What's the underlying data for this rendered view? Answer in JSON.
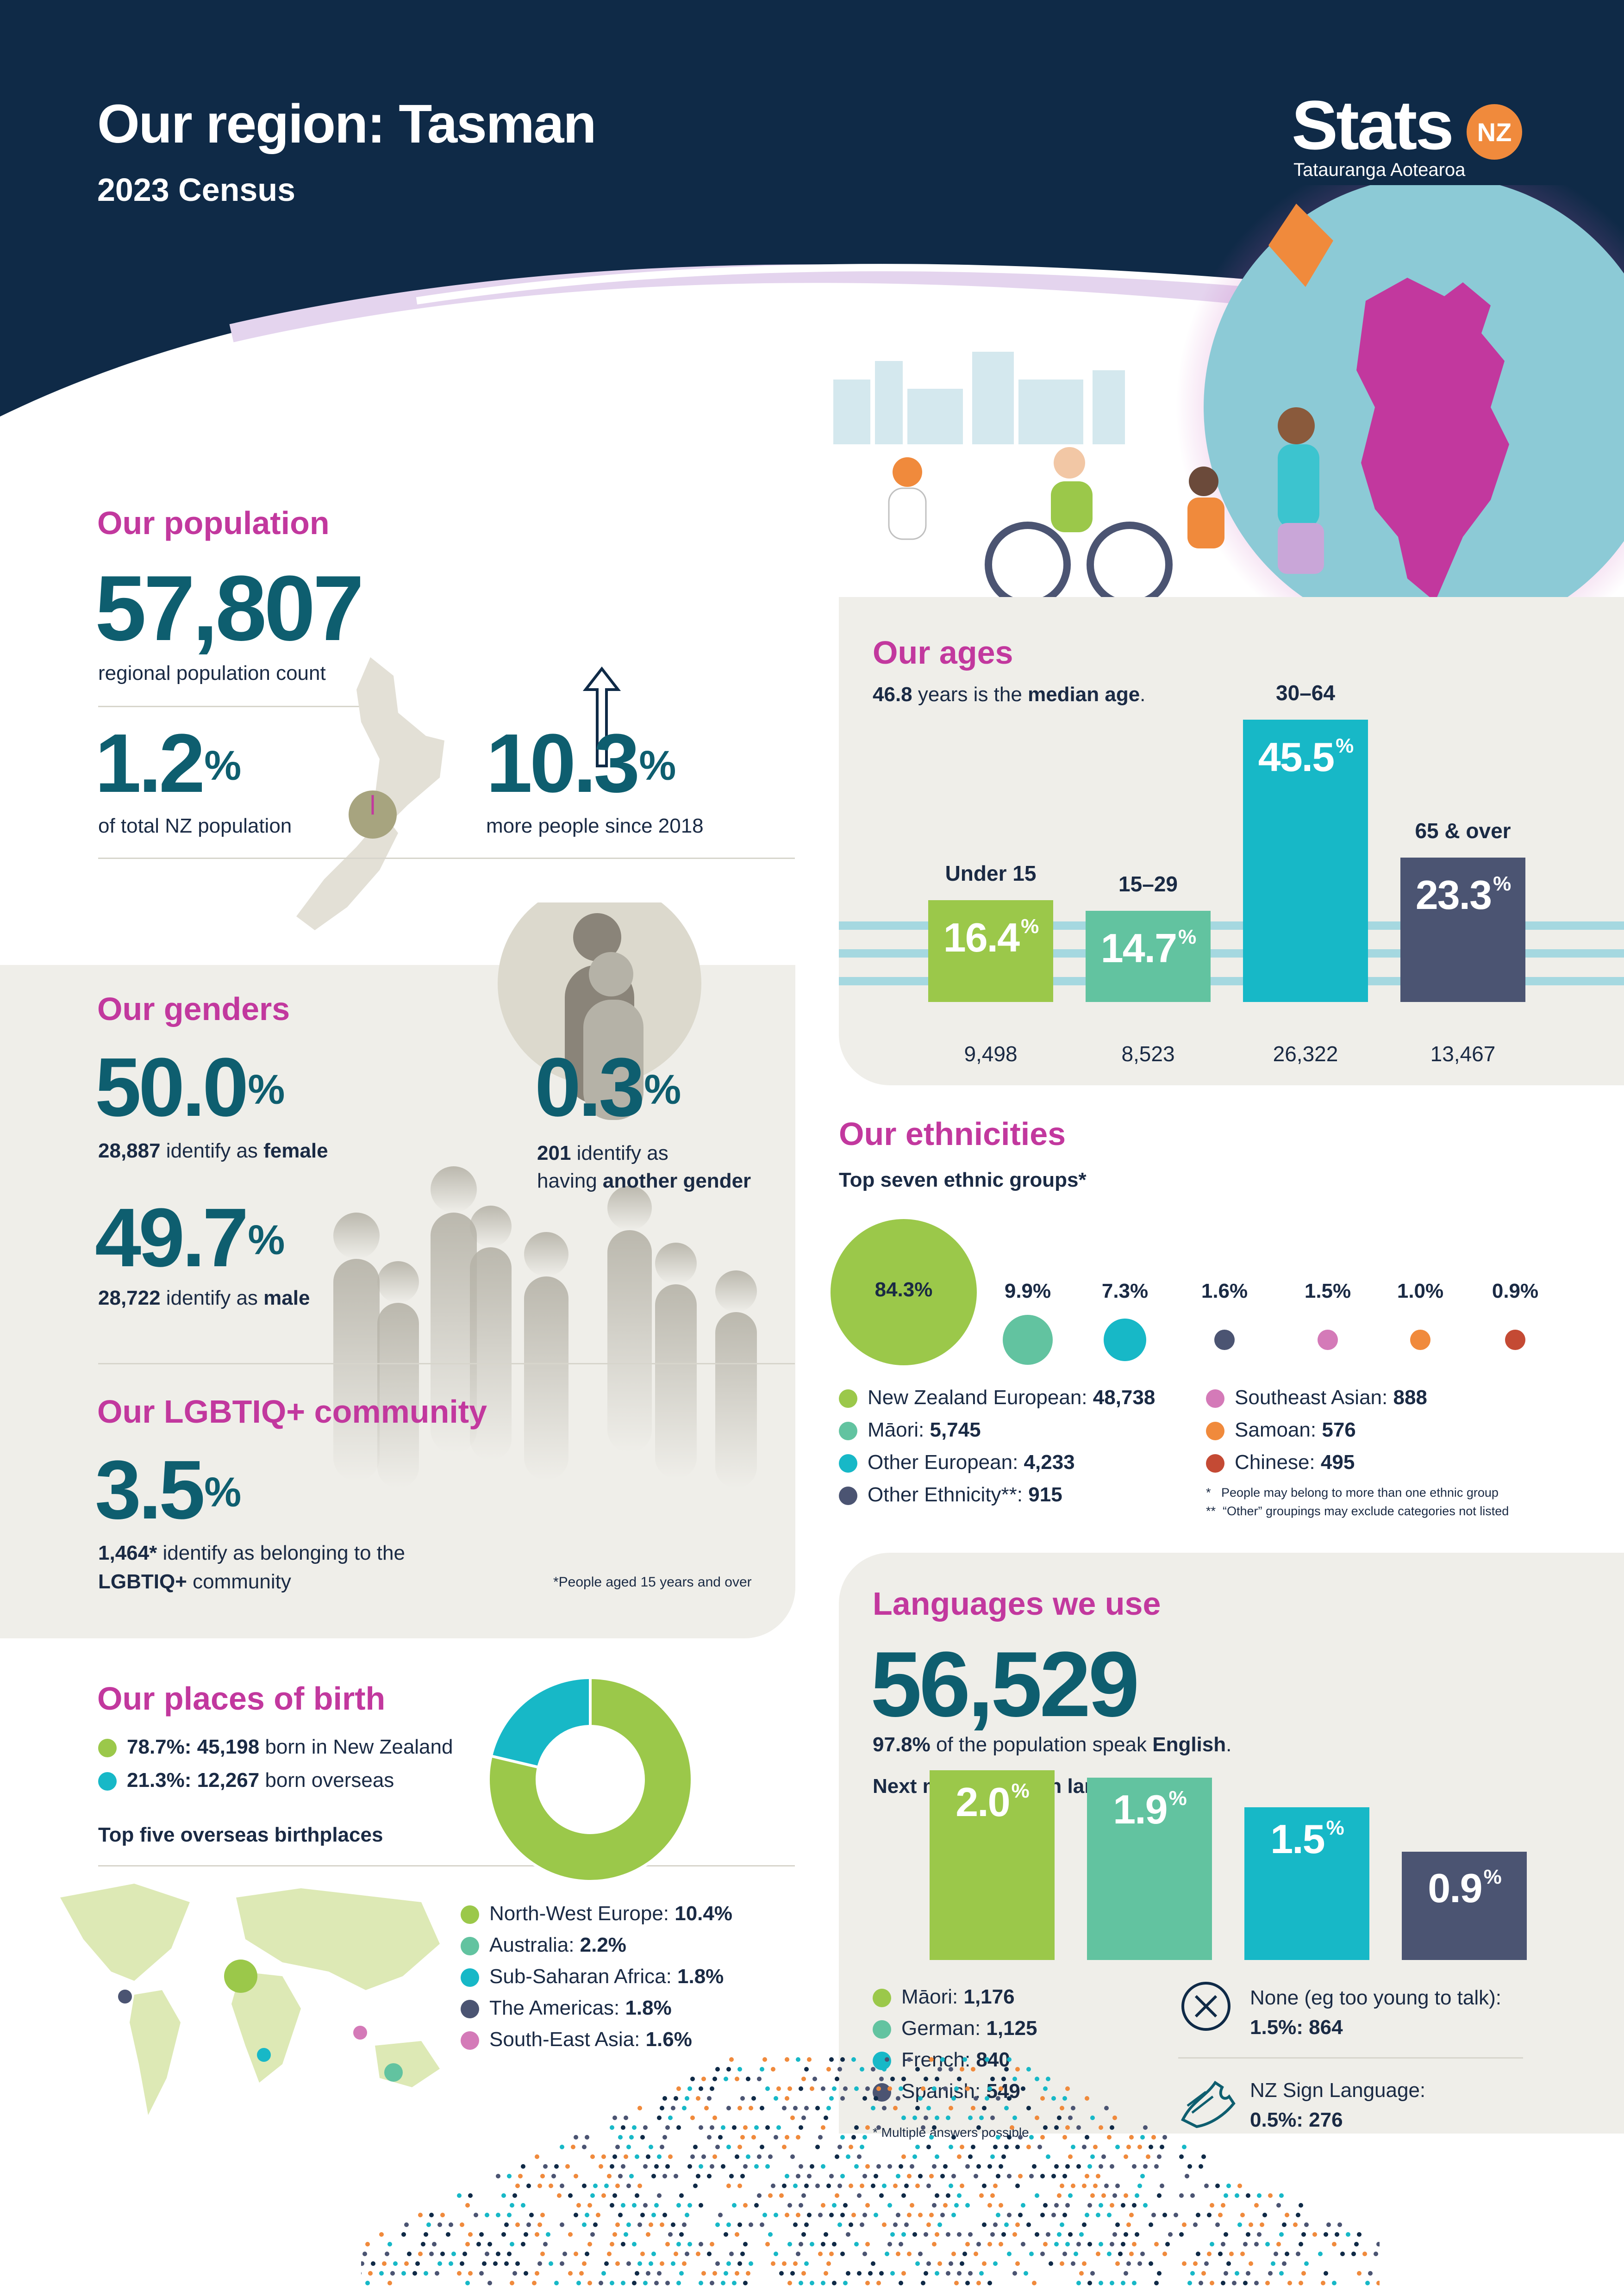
{
  "header": {
    "title": "Our region: Tasman",
    "subtitle": "2023 Census",
    "logo_text": "Stats",
    "logo_badge": "NZ",
    "logo_tagline": "Tatauranga Aotearoa"
  },
  "colors": {
    "navy": "#0f2a47",
    "teal_text": "#0e5e6f",
    "pink": "#c2389e",
    "green": "#9bc84a",
    "mint": "#62c3a0",
    "cyan": "#17b8c7",
    "slate": "#4b5472",
    "orchid": "#d47ab8",
    "orange": "#f08a3c",
    "red": "#c44a34",
    "panel": "#efeee9"
  },
  "population": {
    "heading": "Our population",
    "count": "57,807",
    "count_label": "regional population count",
    "share_value": "1.2",
    "share_unit": "%",
    "share_label": "of total NZ population",
    "growth_value": "10.3",
    "growth_unit": "%",
    "growth_label": "more people since 2018"
  },
  "ages": {
    "heading": "Our ages",
    "median_value": "46.8",
    "median_mid": " years is the ",
    "median_bold": "median age",
    "median_end": ".",
    "groups": [
      {
        "label": "Under 15",
        "percent": "16.4",
        "count": "9,498",
        "value": 16.4,
        "color": "#9bc84a"
      },
      {
        "label": "15–29",
        "percent": "14.7",
        "count": "8,523",
        "value": 14.7,
        "color": "#62c3a0"
      },
      {
        "label": "30–64",
        "percent": "45.5",
        "count": "26,322",
        "value": 45.5,
        "color": "#17b8c7"
      },
      {
        "label": "65 & over",
        "percent": "23.3",
        "count": "13,467",
        "value": 23.3,
        "color": "#4b5472"
      }
    ]
  },
  "genders": {
    "heading": "Our genders",
    "female_pct": "50.0",
    "female_count": "28,887",
    "female_mid": " identify as ",
    "female_bold": "female",
    "male_pct": "49.7",
    "male_count": "28,722",
    "male_mid": " identify as ",
    "male_bold": "male",
    "other_pct": "0.3",
    "other_count": "201",
    "other_mid": " identify as",
    "other_line2_pre": "having ",
    "other_bold": "another gender"
  },
  "lgbtiq": {
    "heading": "Our LGBTIQ+ community",
    "pct": "3.5",
    "count": "1,464*",
    "line1_end": " identify as belonging to the",
    "line2_bold": "LGBTIQ+",
    "line2_end": " community",
    "footnote": "*People aged 15 years and over"
  },
  "ethnicities": {
    "heading": "Our ethnicities",
    "subheading": "Top seven ethnic groups*",
    "groups": [
      {
        "name": "New Zealand European",
        "count": "48,738",
        "pct": "84.3%",
        "value": 84.3,
        "color": "#9bc84a"
      },
      {
        "name": "Māori",
        "count": "5,745",
        "pct": "9.9%",
        "value": 9.9,
        "color": "#62c3a0"
      },
      {
        "name": "Other European",
        "count": "4,233",
        "pct": "7.3%",
        "value": 7.3,
        "color": "#17b8c7"
      },
      {
        "name": "Other Ethnicity**",
        "count": "915",
        "pct": "1.6%",
        "value": 1.6,
        "color": "#4b5472"
      },
      {
        "name": "Southeast Asian",
        "count": "888",
        "pct": "1.5%",
        "value": 1.5,
        "color": "#d47ab8"
      },
      {
        "name": "Samoan",
        "count": "576",
        "pct": "1.0%",
        "value": 1.0,
        "color": "#f08a3c"
      },
      {
        "name": "Chinese",
        "count": "495",
        "pct": "0.9%",
        "value": 0.9,
        "color": "#c44a34"
      }
    ],
    "footnote1": "*   People may belong to more than one ethnic group",
    "footnote2": "**  “Other” groupings may exclude categories not listed"
  },
  "birth": {
    "heading": "Our places of birth",
    "nz_pct": "78.7%",
    "nz_count": "45,198",
    "nz_label": " born in New Zealand",
    "overseas_pct": "21.3%",
    "overseas_count": "12,267",
    "overseas_label": " born overseas",
    "top5_heading": "Top five overseas birthplaces",
    "donut": [
      {
        "name": "born in New Zealand",
        "value": 78.7,
        "color": "#9bc84a"
      },
      {
        "name": "born overseas",
        "value": 21.3,
        "color": "#17b8c7"
      }
    ],
    "places": [
      {
        "name": "North-West Europe",
        "pct": "10.4%",
        "color": "#9bc84a"
      },
      {
        "name": "Australia",
        "pct": "2.2%",
        "color": "#62c3a0"
      },
      {
        "name": "Sub-Saharan Africa",
        "pct": "1.8%",
        "color": "#17b8c7"
      },
      {
        "name": "The Americas",
        "pct": "1.8%",
        "color": "#4b5472"
      },
      {
        "name": "South-East Asia",
        "pct": "1.6%",
        "color": "#d47ab8"
      }
    ]
  },
  "languages": {
    "heading": "Languages we use",
    "english_count": "56,529",
    "english_pct": "97.8%",
    "english_mid": " of the population speak ",
    "english_bold": "English",
    "english_end": ".",
    "next_heading": "Next most common languages*",
    "bars": [
      {
        "name": "Māori",
        "pct": "2.0",
        "count": "1,176",
        "value": 2.0,
        "color": "#9bc84a"
      },
      {
        "name": "German",
        "pct": "1.9",
        "count": "1,125",
        "value": 1.9,
        "color": "#62c3a0"
      },
      {
        "name": "French",
        "pct": "1.5",
        "count": "840",
        "value": 1.5,
        "color": "#17b8c7"
      },
      {
        "name": "Spanish",
        "pct": "0.9",
        "count": "549",
        "value": 0.9,
        "color": "#4b5472"
      }
    ],
    "none_label": "None (eg too young to talk):",
    "none_value": "1.5%: 864",
    "nzsl_label": "NZ Sign Language:",
    "nzsl_value": "0.5%: 276",
    "footnote": "* Multiple answers possible"
  }
}
